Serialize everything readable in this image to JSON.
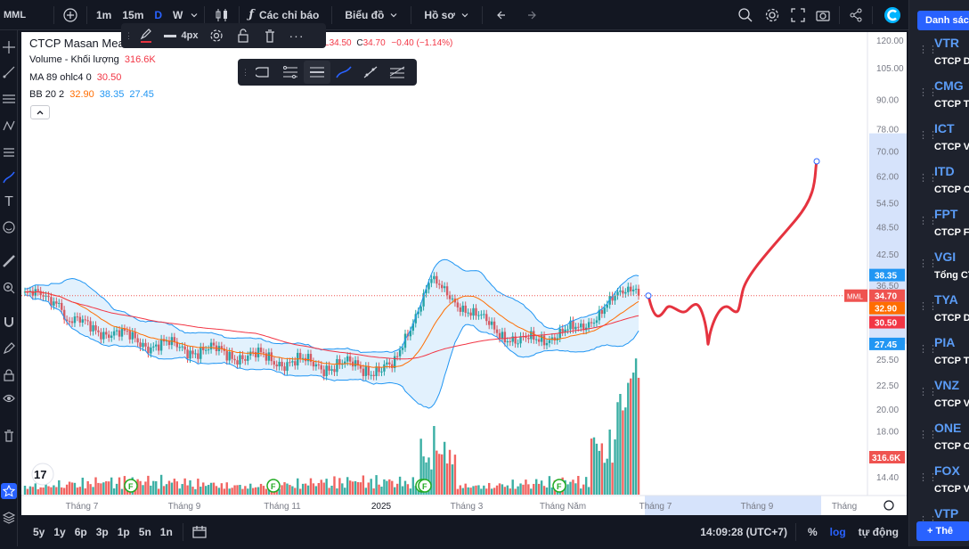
{
  "topbar": {
    "symbol": "MML",
    "intervals": [
      "1m",
      "15m",
      "D",
      "W"
    ],
    "active_interval": "D",
    "indicators_label": "Các chỉ báo",
    "chart_label": "Biểu đồ",
    "profile_label": "Hồ sơ"
  },
  "drawing_toolbar": {
    "width_label": "4px"
  },
  "legend": {
    "title": "CTCP Masan Mea",
    "ohlc_tail_value": "34.50",
    "close_prefix": "C",
    "close_value": "34.70",
    "change_value": "−0.40 (−1.14%)",
    "volume_label": "Volume - Khối lượng",
    "volume_value": "316.6K",
    "ma_label": "MA 89 ohlc4 0",
    "ma_value": "30.50",
    "bb_label": "BB 20 2",
    "bb_mid": "32.90",
    "bb_upper": "38.35",
    "bb_lower": "27.45"
  },
  "price_axis": {
    "ticks": [
      "120.00",
      "105.00",
      "90.00",
      "78.00",
      "70.00",
      "62.00",
      "54.50",
      "48.50",
      "42.50",
      "36.50",
      "30.50",
      "25.50",
      "22.50",
      "20.00",
      "18.00",
      "14.40"
    ],
    "labels": {
      "bb_upper": "38.35",
      "symbol_tag": "MML",
      "last": "34.70",
      "bb_mid": "32.90",
      "ma": "30.50",
      "bb_lower": "27.45",
      "volume": "316.6K"
    }
  },
  "time_axis": {
    "ticks": [
      "Tháng 7",
      "Tháng 9",
      "Tháng 11",
      "2025",
      "Tháng 3",
      "Tháng Năm",
      "Tháng 7",
      "Tháng 9",
      "Tháng"
    ]
  },
  "bottombar": {
    "ranges": [
      "5y",
      "1y",
      "6p",
      "3p",
      "1p",
      "5n",
      "1n"
    ],
    "time": "14:09:28 (UTC+7)",
    "percent_label": "%",
    "log_label": "log",
    "auto_label": "tự động"
  },
  "watchlist": {
    "header": "Danh sác",
    "add_label": "+ Thê",
    "items": [
      {
        "symbol": "VTR",
        "name": "CTCP D"
      },
      {
        "symbol": "CMG",
        "name": "CTCP T"
      },
      {
        "symbol": "ICT",
        "name": "CTCP V"
      },
      {
        "symbol": "ITD",
        "name": "CTCP C"
      },
      {
        "symbol": "FPT",
        "name": "CTCP F"
      },
      {
        "symbol": "VGI",
        "name": "Tổng CT"
      },
      {
        "symbol": "TYA",
        "name": "CTCP D"
      },
      {
        "symbol": "PIA",
        "name": "CTCP T"
      },
      {
        "symbol": "VNZ",
        "name": "CTCP V"
      },
      {
        "symbol": "ONE",
        "name": "CTCP C"
      },
      {
        "symbol": "FOX",
        "name": "CTCP V"
      },
      {
        "symbol": "VTP",
        "name": ""
      }
    ]
  },
  "chart_data": {
    "type": "candlestick",
    "log_scale": true,
    "series": [
      {
        "name": "BB upper",
        "value": 38.35
      },
      {
        "name": "BB basis",
        "value": 32.9
      },
      {
        "name": "BB lower",
        "value": 27.45
      },
      {
        "name": "MA 89",
        "value": 30.5
      }
    ],
    "last_close": 34.7,
    "last_volume": "316.6K",
    "colors": {
      "up": "#26a69a",
      "down": "#ef5350",
      "bb": "#2196f3",
      "basis": "#ff6d00",
      "ma": "#f23645",
      "drawing": "#e5333f"
    }
  }
}
